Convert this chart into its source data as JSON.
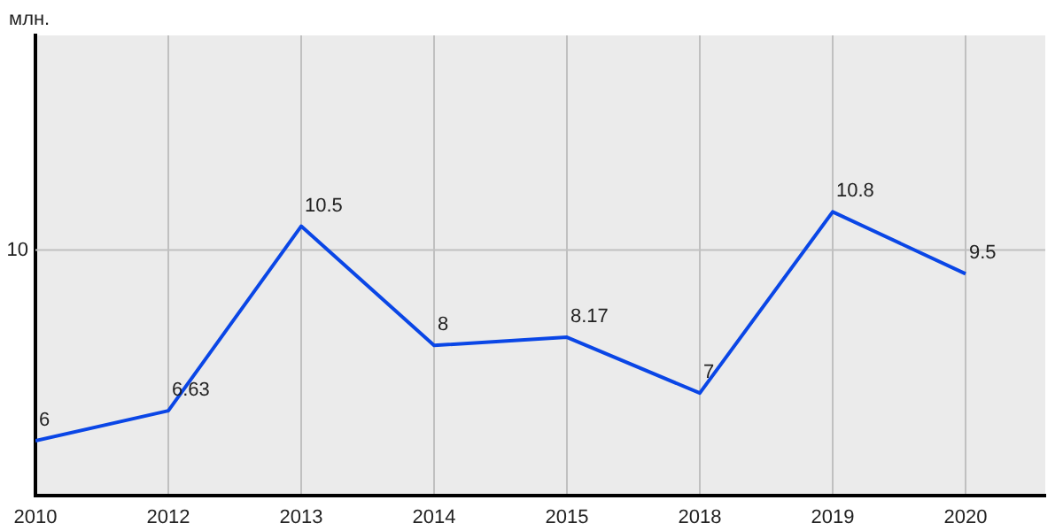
{
  "chart_data": {
    "type": "line",
    "ylabel": "млн.",
    "categories": [
      "2010",
      "2012",
      "2013",
      "2014",
      "2015",
      "2018",
      "2019",
      "2020"
    ],
    "series": [
      {
        "color": "#0a46e6",
        "values": [
          6,
          6.63,
          10.5,
          8,
          8.17,
          7,
          10.8,
          9.5
        ]
      }
    ],
    "ylim": [
      4.85,
      14.5
    ],
    "ref_lines": [
      {
        "axis": "y",
        "value": 10,
        "label": "10",
        "color": "#c0c0c0"
      }
    ],
    "grid": "x",
    "legend": false,
    "marker": "none",
    "line_style": "solid",
    "data_labels": true
  }
}
